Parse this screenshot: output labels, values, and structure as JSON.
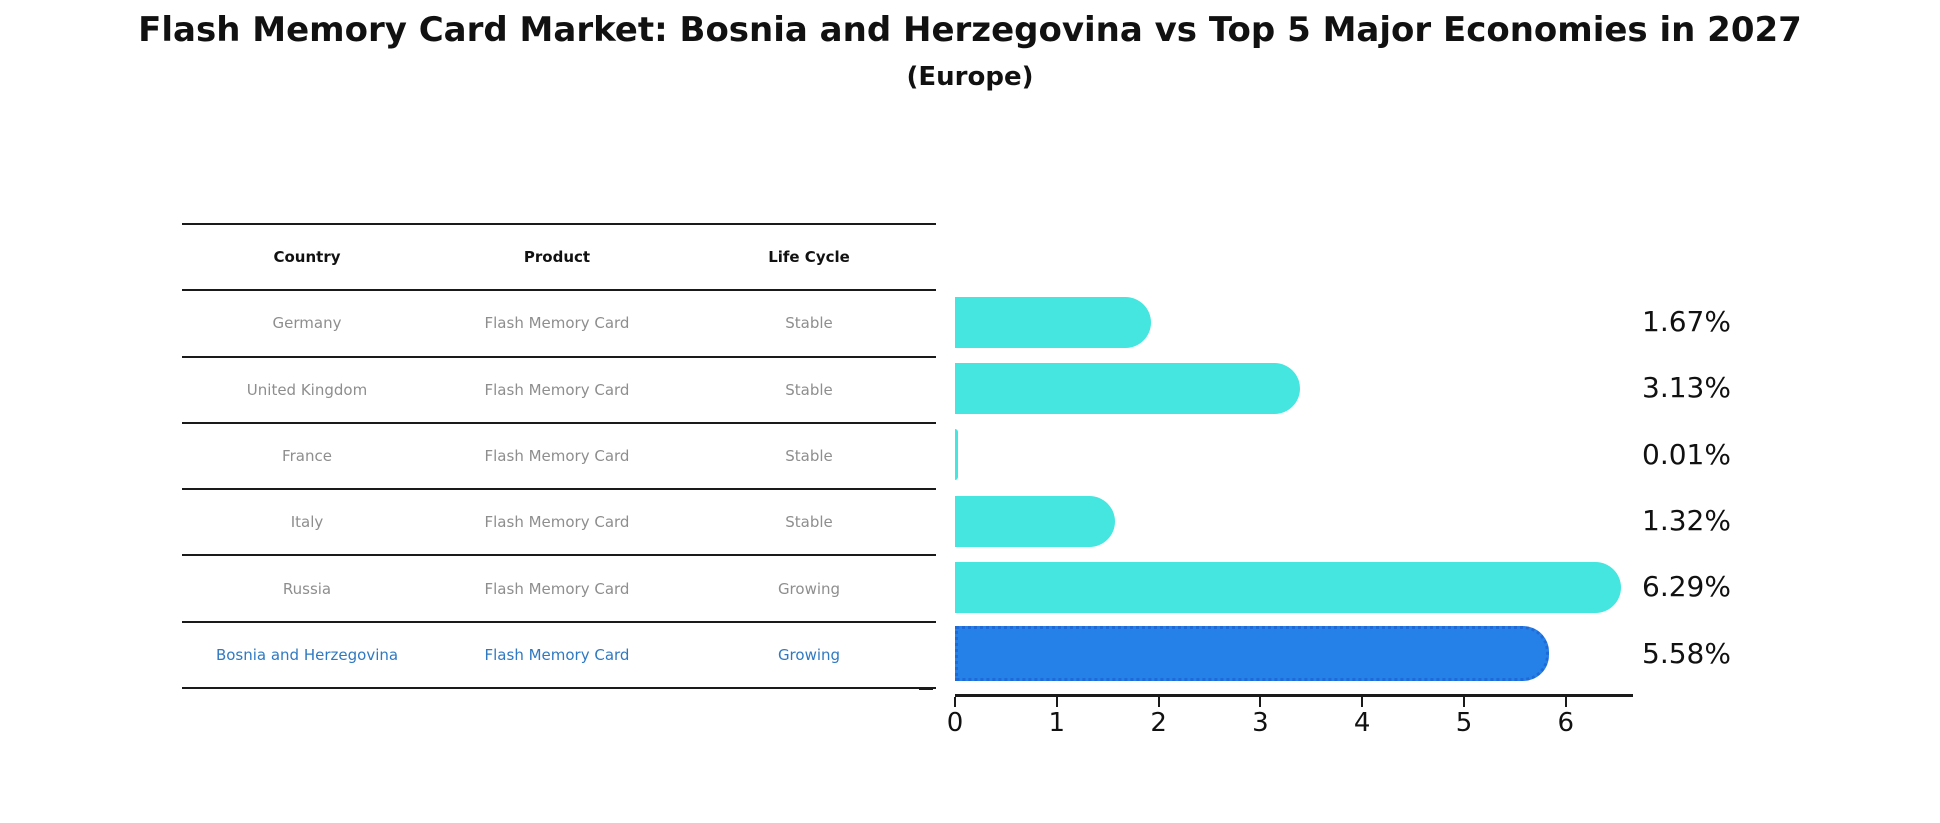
{
  "title": "Flash Memory Card Market: Bosnia and Herzegovina vs Top 5 Major Economies in 2027",
  "subtitle": "(Europe)",
  "table": {
    "headers": {
      "country": "Country",
      "product": "Product",
      "life_cycle": "Life Cycle"
    },
    "rows": [
      {
        "country": "Germany",
        "product": "Flash Memory Card",
        "life_cycle": "Stable",
        "highlight": false
      },
      {
        "country": "United Kingdom",
        "product": "Flash Memory Card",
        "life_cycle": "Stable",
        "highlight": false
      },
      {
        "country": "France",
        "product": "Flash Memory Card",
        "life_cycle": "Stable",
        "highlight": false
      },
      {
        "country": "Italy",
        "product": "Flash Memory Card",
        "life_cycle": "Stable",
        "highlight": false
      },
      {
        "country": "Russia",
        "product": "Flash Memory Card",
        "life_cycle": "Growing",
        "highlight": false
      },
      {
        "country": "Bosnia and Herzegovina",
        "product": "Flash Memory Card",
        "life_cycle": "Growing",
        "highlight": true
      }
    ]
  },
  "chart_data": {
    "type": "bar",
    "orientation": "horizontal",
    "title": "Flash Memory Card Market: Bosnia and Herzegovina vs Top 5 Major Economies in 2027 (Europe)",
    "categories": [
      "Germany",
      "United Kingdom",
      "France",
      "Italy",
      "Russia",
      "Bosnia and Herzegovina"
    ],
    "values": [
      1.67,
      3.13,
      0.01,
      1.32,
      6.29,
      5.58
    ],
    "value_labels": [
      "1.67%",
      "3.13%",
      "0.01%",
      "1.32%",
      "6.29%",
      "5.58%"
    ],
    "x_ticks": [
      0,
      1,
      2,
      3,
      4,
      5,
      6
    ],
    "xlim": [
      0,
      6.66
    ],
    "xlabel": "",
    "ylabel": "",
    "grid": false,
    "legend": "none",
    "bar_color": "#45E6DF",
    "highlight_color": "#2580E8",
    "highlight_border_color": "#1D6AD8",
    "highlight_index": 5,
    "value_label_color": "#111111"
  }
}
